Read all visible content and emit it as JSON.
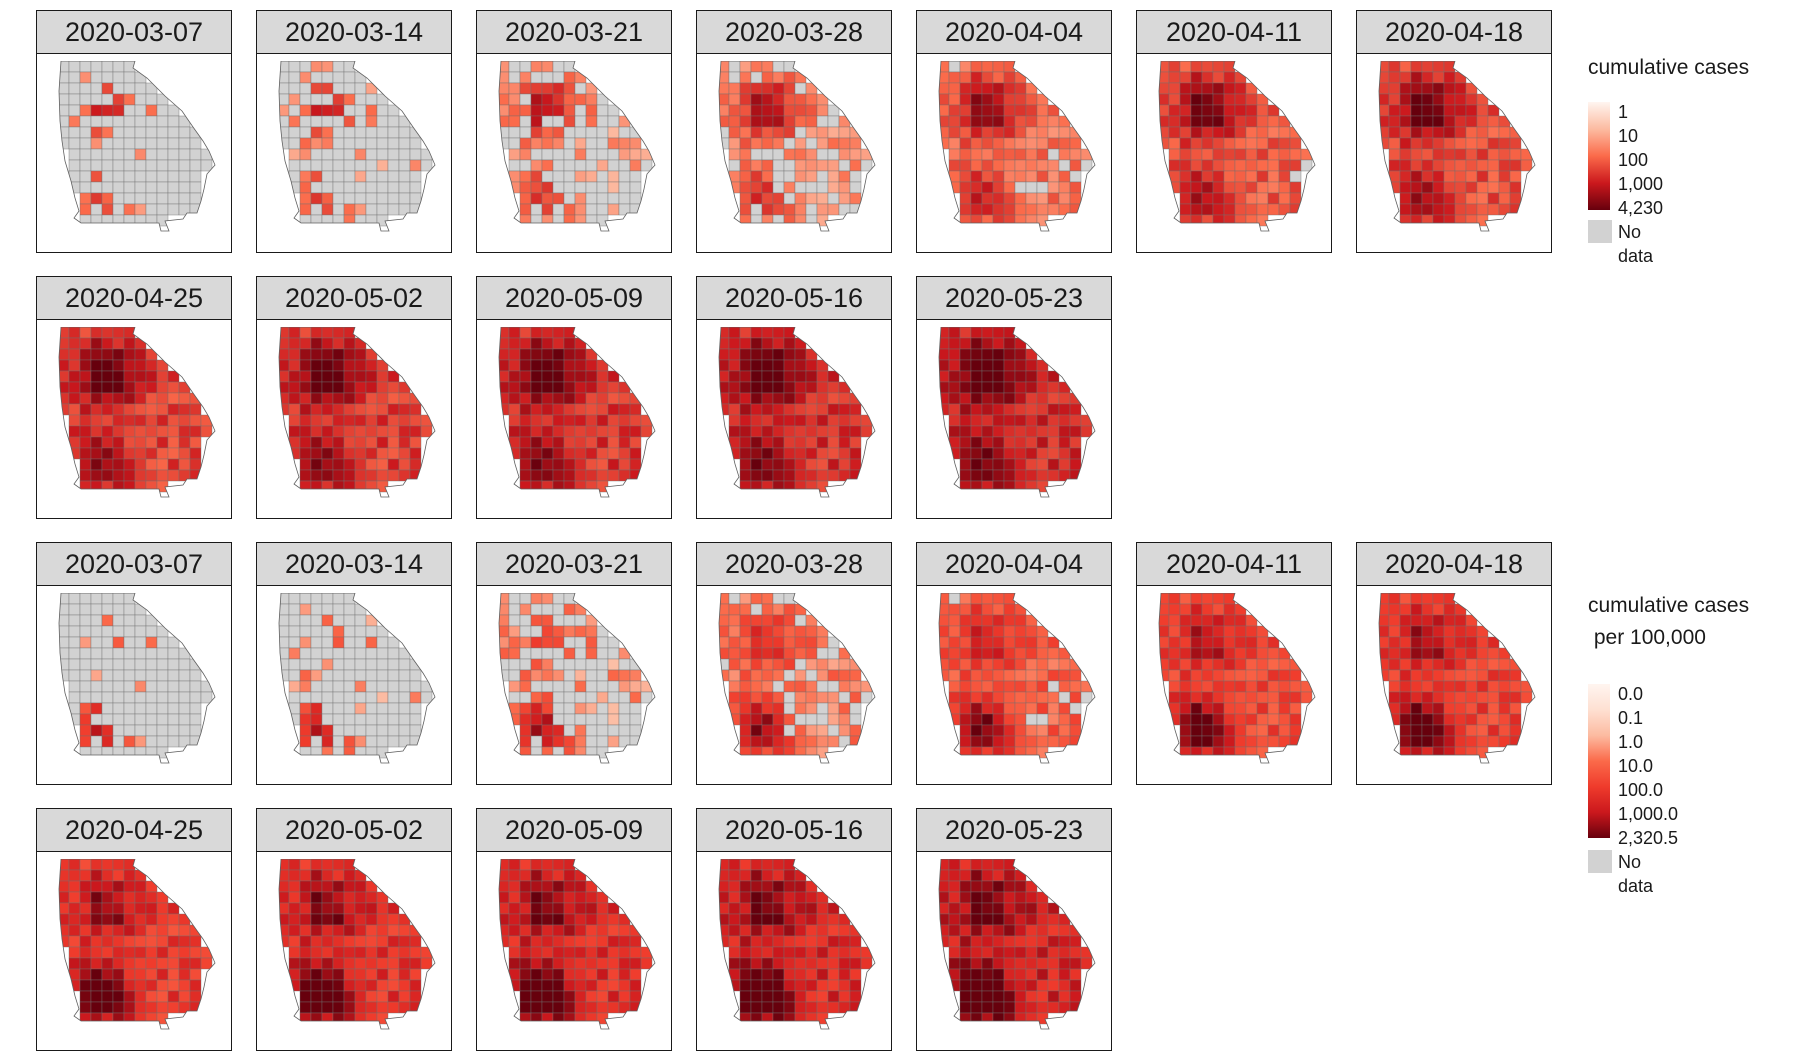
{
  "chart_data": [
    {
      "type": "choropleth",
      "title": "",
      "subtitle": "",
      "region": "Georgia counties",
      "facet_labels": [
        "2020-03-07",
        "2020-03-14",
        "2020-03-21",
        "2020-03-28",
        "2020-04-04",
        "2020-04-11",
        "2020-04-18",
        "2020-04-25",
        "2020-05-02",
        "2020-05-09",
        "2020-05-16",
        "2020-05-23"
      ],
      "legend": {
        "title": "cumulative cases",
        "scale": "log",
        "tick_labels": [
          "1",
          "10",
          "100",
          "1,000",
          "4,230"
        ],
        "tick_values": [
          1,
          10,
          100,
          1000,
          4230
        ],
        "no_data_label": "No data",
        "no_data_color": "#d2d2d2",
        "colors": [
          "#fff5f0",
          "#fcbba1",
          "#fb6a4a",
          "#cb181d",
          "#67000d"
        ]
      },
      "approx_fraction_counties_reporting": [
        0.05,
        0.13,
        0.4,
        0.67,
        0.86,
        0.97,
        0.99,
        1.0,
        1.0,
        1.0,
        1.0,
        1.0
      ],
      "approx_median_level": [
        0.32,
        0.33,
        0.36,
        0.4,
        0.47,
        0.55,
        0.58,
        0.62,
        0.64,
        0.66,
        0.68,
        0.7
      ]
    },
    {
      "type": "choropleth",
      "title": "",
      "subtitle": "",
      "region": "Georgia counties",
      "facet_labels": [
        "2020-03-07",
        "2020-03-14",
        "2020-03-21",
        "2020-03-28",
        "2020-04-04",
        "2020-04-11",
        "2020-04-18",
        "2020-04-25",
        "2020-05-02",
        "2020-05-09",
        "2020-05-16",
        "2020-05-23"
      ],
      "legend": {
        "title": "cumulative cases\n per 100,000",
        "scale": "log",
        "tick_labels": [
          "0.0",
          "0.1",
          "1.0",
          "10.0",
          "100.0",
          "1,000.0",
          "2,320.5"
        ],
        "tick_values": [
          0,
          0.1,
          1,
          10,
          100,
          1000,
          2320.5
        ],
        "no_data_label": "No data",
        "no_data_color": "#d2d2d2",
        "colors": [
          "#fff5f0",
          "#fee0d2",
          "#fcbba1",
          "#fb6a4a",
          "#ef3b2c",
          "#cb181d",
          "#67000d"
        ]
      },
      "approx_fraction_counties_reporting": [
        0.05,
        0.13,
        0.4,
        0.72,
        0.92,
        0.99,
        1.0,
        1.0,
        1.0,
        1.0,
        1.0,
        1.0
      ],
      "approx_median_level": [
        0.36,
        0.38,
        0.42,
        0.48,
        0.55,
        0.62,
        0.65,
        0.68,
        0.71,
        0.73,
        0.75,
        0.77
      ]
    }
  ]
}
